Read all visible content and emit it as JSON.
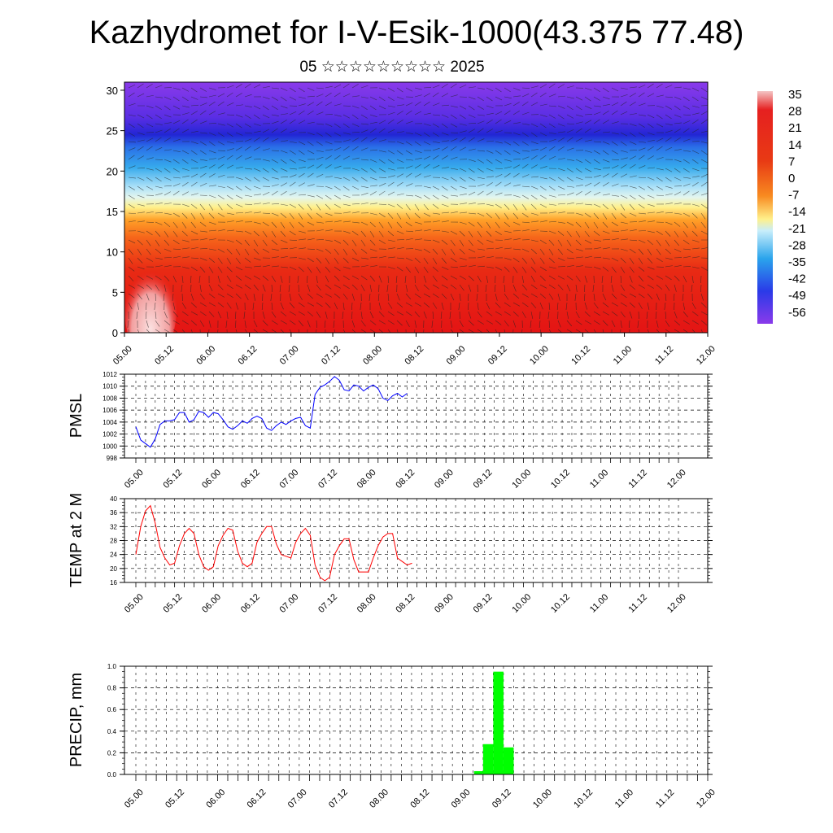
{
  "title": "Kazhydromet for I-V-Esik-1000(43.375 77.48)",
  "subtitle": "05 ☆☆☆☆☆☆☆☆☆ 2025",
  "colors": {
    "pmsl_line": "#0000ff",
    "temp_line": "#ff0000",
    "precip_bar": "#00ff00",
    "frame": "#000000"
  },
  "chart_data": [
    {
      "type": "heatmap",
      "title": "",
      "xlabel": "",
      "ylabel": "",
      "x_tick_labels": [
        "05.00",
        "05.12",
        "06.00",
        "06.12",
        "07.00",
        "07.12",
        "08.00",
        "08.12",
        "09.00",
        "09.12",
        "10.00",
        "10.12",
        "11.00",
        "11.12",
        "12.00"
      ],
      "y_ticks": [
        0,
        5,
        10,
        15,
        20,
        25,
        30
      ],
      "ylim": [
        0,
        31
      ],
      "overlay": "wind barbs",
      "colorbar_labels": [
        "35",
        "28",
        "21",
        "14",
        "7",
        "0",
        "-7",
        "-14",
        "-21",
        "-28",
        "-35",
        "-42",
        "-49",
        "-56"
      ],
      "color_stops": [
        {
          "value": 35,
          "color": "#f4c4c4"
        },
        {
          "value": 28,
          "color": "#e62020"
        },
        {
          "value": 14,
          "color": "#f04a10"
        },
        {
          "value": 0,
          "color": "#ffa020"
        },
        {
          "value": -7,
          "color": "#fff08a"
        },
        {
          "value": -14,
          "color": "#c8eefb"
        },
        {
          "value": -28,
          "color": "#2aa4ec"
        },
        {
          "value": -42,
          "color": "#2a3ae8"
        },
        {
          "value": -56,
          "color": "#8a3aea"
        }
      ]
    },
    {
      "type": "line",
      "ylabel": "PMSL",
      "ylim": [
        998,
        1012
      ],
      "y_ticks": [
        998,
        1000,
        1002,
        1004,
        1006,
        1008,
        1010,
        1012
      ],
      "x_tick_labels": [
        "05.00",
        "05.12",
        "06.00",
        "06.12",
        "07.00",
        "07.12",
        "08.00",
        "08.12",
        "09.00",
        "09.12",
        "10.00",
        "10.12",
        "11.00",
        "11.12",
        "12.00"
      ],
      "grid": true,
      "series": [
        {
          "values": [
            1003.2,
            1001.0,
            1000.4,
            999.8,
            1001.2,
            1003.6,
            1004.2,
            1004.2,
            1004.4,
            1005.6,
            1005.6,
            1004.0,
            1004.4,
            1005.8,
            1005.6,
            1004.8,
            1005.6,
            1005.4,
            1004.4,
            1003.2,
            1002.8,
            1003.4,
            1004.2,
            1003.8,
            1004.6,
            1005.0,
            1004.6,
            1003.0,
            1002.6,
            1003.4,
            1004.0,
            1003.6,
            1004.2,
            1004.6,
            1004.8,
            1003.4,
            1003.0,
            1008.6,
            1009.8,
            1010.2,
            1010.8,
            1011.6,
            1011.0,
            1009.4,
            1009.2,
            1010.2,
            1010.0,
            1009.2,
            1009.8,
            1010.2,
            1009.6,
            1008.0,
            1007.6,
            1008.4,
            1008.8,
            1008.2,
            1008.8
          ]
        }
      ]
    },
    {
      "type": "line",
      "ylabel": "TEMP at 2 M",
      "ylim": [
        16,
        40
      ],
      "y_ticks": [
        16,
        20,
        24,
        28,
        32,
        36,
        40
      ],
      "x_tick_labels": [
        "05.00",
        "05.12",
        "06.00",
        "06.12",
        "07.00",
        "07.12",
        "08.00",
        "08.12",
        "09.00",
        "09.12",
        "10.00",
        "10.12",
        "11.00",
        "11.12",
        "12.00"
      ],
      "grid": true,
      "series": [
        {
          "values": [
            24,
            32,
            36.5,
            38,
            33,
            26,
            23,
            21,
            21.5,
            26.5,
            30,
            31.5,
            30,
            24,
            20.5,
            19.5,
            20.5,
            26.5,
            29.5,
            31.5,
            31,
            25,
            21.5,
            20.5,
            21.5,
            27.5,
            30,
            32,
            32,
            27,
            24,
            23.5,
            23,
            27.5,
            30,
            31.5,
            29.5,
            21,
            17.5,
            16.5,
            17.5,
            24,
            26.5,
            28.5,
            28.5,
            22.5,
            19,
            19,
            19,
            23,
            26.5,
            29,
            30,
            30,
            23,
            22,
            21,
            21.5
          ]
        }
      ]
    },
    {
      "type": "bar",
      "ylabel": "PRECIP, mm",
      "ylim": [
        0,
        1.0
      ],
      "y_ticks": [
        "0.0",
        "0.2",
        "0.4",
        "0.6",
        "0.8",
        "1.0"
      ],
      "x_tick_labels": [
        "05.00",
        "05.12",
        "06.00",
        "06.12",
        "07.00",
        "07.12",
        "08.00",
        "08.12",
        "09.00",
        "09.12",
        "10.00",
        "10.12",
        "11.00",
        "11.12",
        "12.00"
      ],
      "grid": true,
      "bars": [
        {
          "x": 9.14,
          "x_end": 9.25,
          "value": 0.03
        },
        {
          "x": 9.25,
          "x_end": 9.375,
          "value": 0.28
        },
        {
          "x": 9.375,
          "x_end": 9.5,
          "value": 0.95
        },
        {
          "x": 9.5,
          "x_end": 9.625,
          "value": 0.25
        }
      ]
    }
  ]
}
